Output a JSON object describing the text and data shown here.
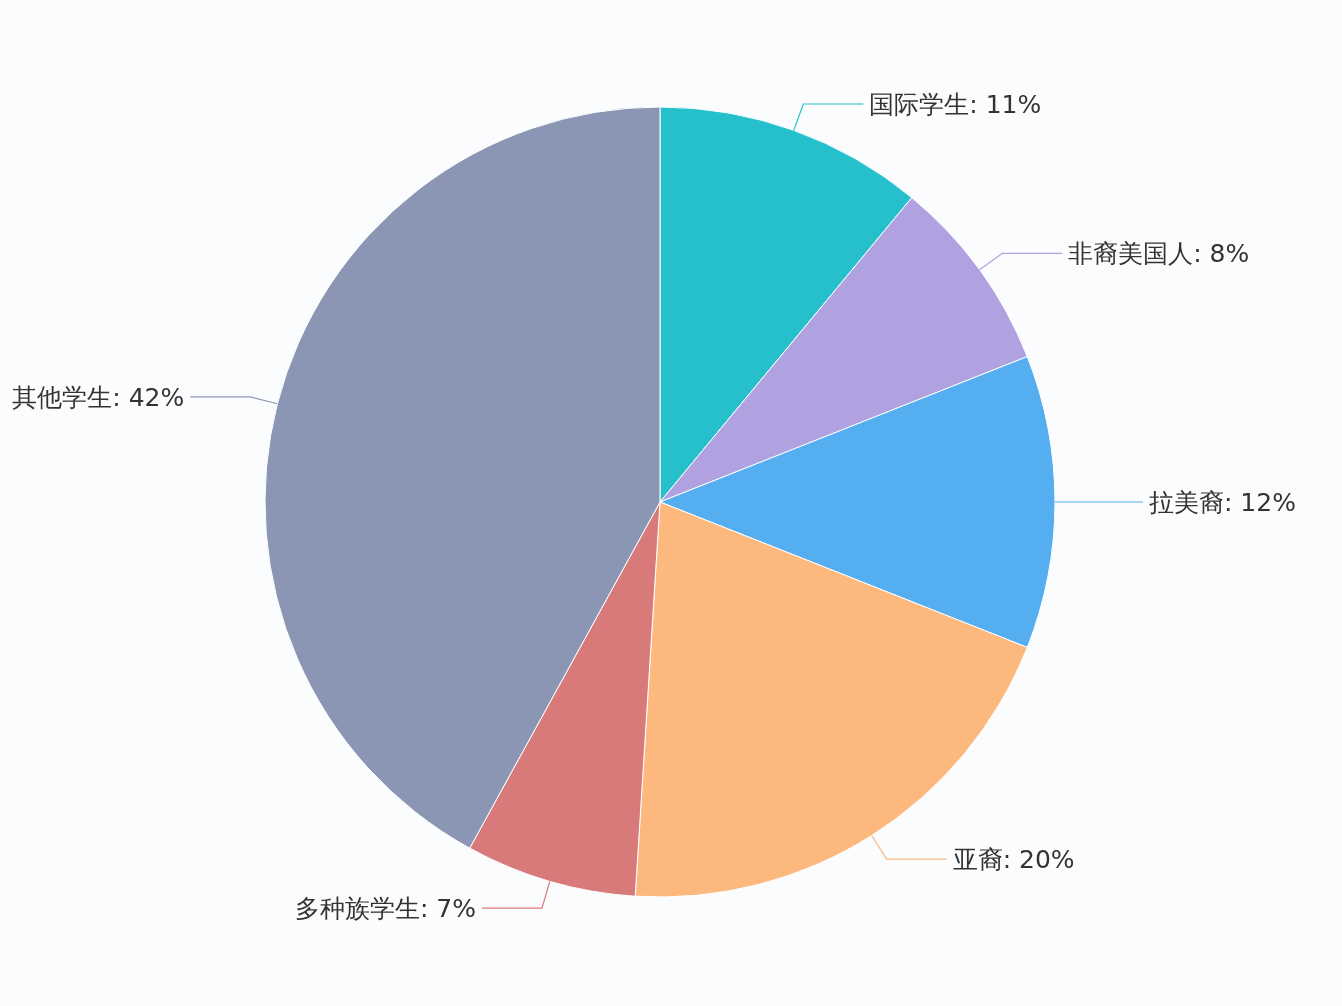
{
  "chart_data": {
    "type": "pie",
    "categories": [
      "国际学生",
      "非裔美国人",
      "拉美裔",
      "亚裔",
      "多种族学生",
      "其他学生"
    ],
    "values": [
      11,
      8,
      12,
      20,
      7,
      42
    ],
    "value_labels": [
      "11%",
      "8%",
      "12%",
      "20%",
      "7%",
      "42%"
    ],
    "colors": [
      "#26c0cc",
      "#b0a1e0",
      "#55aef0",
      "#fdb97d",
      "#d87a7a",
      "#8a96b3"
    ]
  }
}
